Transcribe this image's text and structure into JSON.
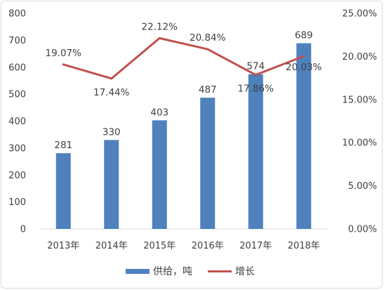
{
  "chart_data": {
    "type": "bar",
    "categories": [
      "2013年",
      "2014年",
      "2015年",
      "2016年",
      "2017年",
      "2018年"
    ],
    "series": [
      {
        "name": "供给，吨",
        "type": "bar",
        "axis": "left",
        "color": "#4f81bd",
        "values": [
          281,
          330,
          403,
          487,
          574,
          689
        ],
        "labels": [
          "281",
          "330",
          "403",
          "487",
          "574",
          "689"
        ]
      },
      {
        "name": "增长",
        "type": "line",
        "axis": "right",
        "color": "#c0504d",
        "values": [
          19.07,
          17.44,
          22.12,
          20.84,
          17.86,
          20.03
        ],
        "labels": [
          "19.07%",
          "17.44%",
          "22.12%",
          "20.84%",
          "17.86%",
          "20.03%"
        ]
      }
    ],
    "y_left": {
      "lim": [
        0,
        800
      ],
      "ticks": [
        0,
        100,
        200,
        300,
        400,
        500,
        600,
        700,
        800
      ],
      "tick_labels": [
        "0",
        "100",
        "200",
        "300",
        "400",
        "500",
        "600",
        "700",
        "800"
      ]
    },
    "y_right": {
      "lim": [
        0,
        25
      ],
      "ticks": [
        0,
        5,
        10,
        15,
        20,
        25
      ],
      "tick_labels": [
        "0.00%",
        "5.00%",
        "10.00%",
        "15.00%",
        "20.00%",
        "25.00%"
      ]
    },
    "title": "",
    "xlabel": "",
    "ylabel": "",
    "grid": false,
    "legend_position": "bottom"
  }
}
